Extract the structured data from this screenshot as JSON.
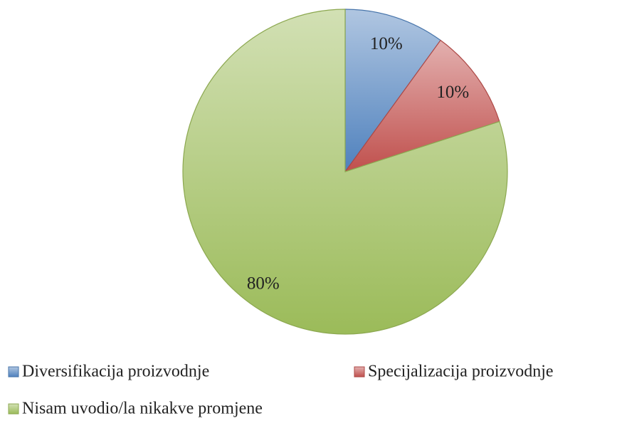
{
  "chart_data": {
    "type": "pie",
    "categories": [
      "Diversifikacija proizvodnje",
      "Specijalizacija proizvodnje",
      "Nisam uvodio/la nikakve promjene"
    ],
    "values": [
      10,
      10,
      80
    ],
    "value_labels": [
      "10%",
      "10%",
      "80%"
    ],
    "colors": [
      "#4f81bd",
      "#c0504d",
      "#9bbb59"
    ],
    "legend": "bottom"
  }
}
